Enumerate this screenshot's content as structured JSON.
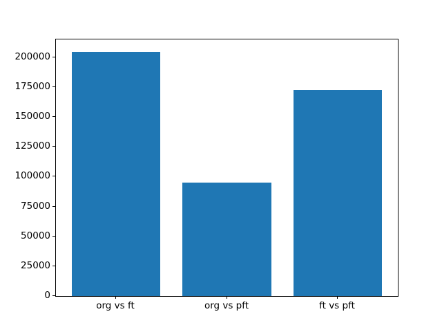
{
  "chart_data": {
    "type": "bar",
    "categories": [
      "org vs ft",
      "org vs pft",
      "ft vs pft"
    ],
    "values": [
      204600,
      95300,
      172800
    ],
    "title": "",
    "xlabel": "",
    "ylabel": "",
    "ylim": [
      0,
      215000
    ],
    "xlim": [
      -0.54,
      2.54
    ],
    "x_positions": [
      0,
      1,
      2
    ],
    "bar_width": 0.8,
    "yticks": [
      0,
      25000,
      50000,
      75000,
      100000,
      125000,
      150000,
      175000,
      200000
    ],
    "ytick_labels": [
      "0",
      "25000",
      "50000",
      "75000",
      "100000",
      "125000",
      "150000",
      "175000",
      "200000"
    ],
    "grid": false,
    "legend": null,
    "colors": {
      "bar": "#1f77b4",
      "background": "#ffffff",
      "axis": "#000000",
      "text": "#000000"
    }
  }
}
